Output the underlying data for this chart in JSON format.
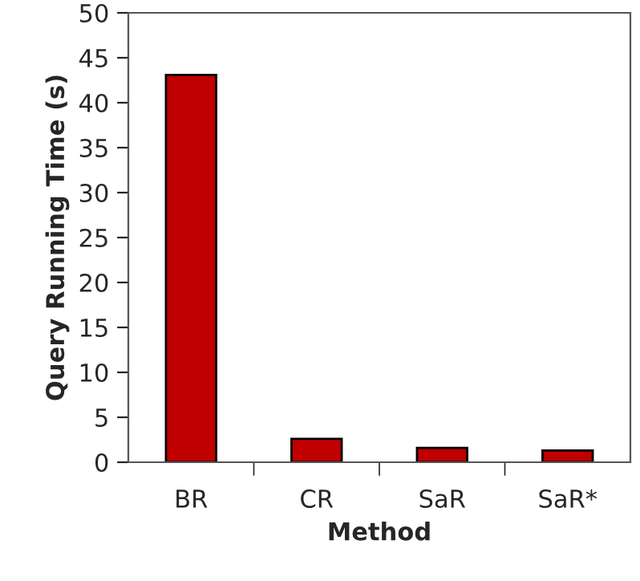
{
  "chart_data": {
    "type": "bar",
    "xlabel": "Method",
    "ylabel": "Query Running Time (s)",
    "categories": [
      "BR",
      "CR",
      "SaR",
      "SaR*"
    ],
    "values": [
      43.1,
      2.6,
      1.6,
      1.3
    ],
    "color": "#c00000",
    "ylim": [
      0,
      50
    ],
    "yticks": [
      0,
      5,
      10,
      15,
      20,
      25,
      30,
      35,
      40,
      45,
      50
    ],
    "grid": false,
    "legend": false
  }
}
